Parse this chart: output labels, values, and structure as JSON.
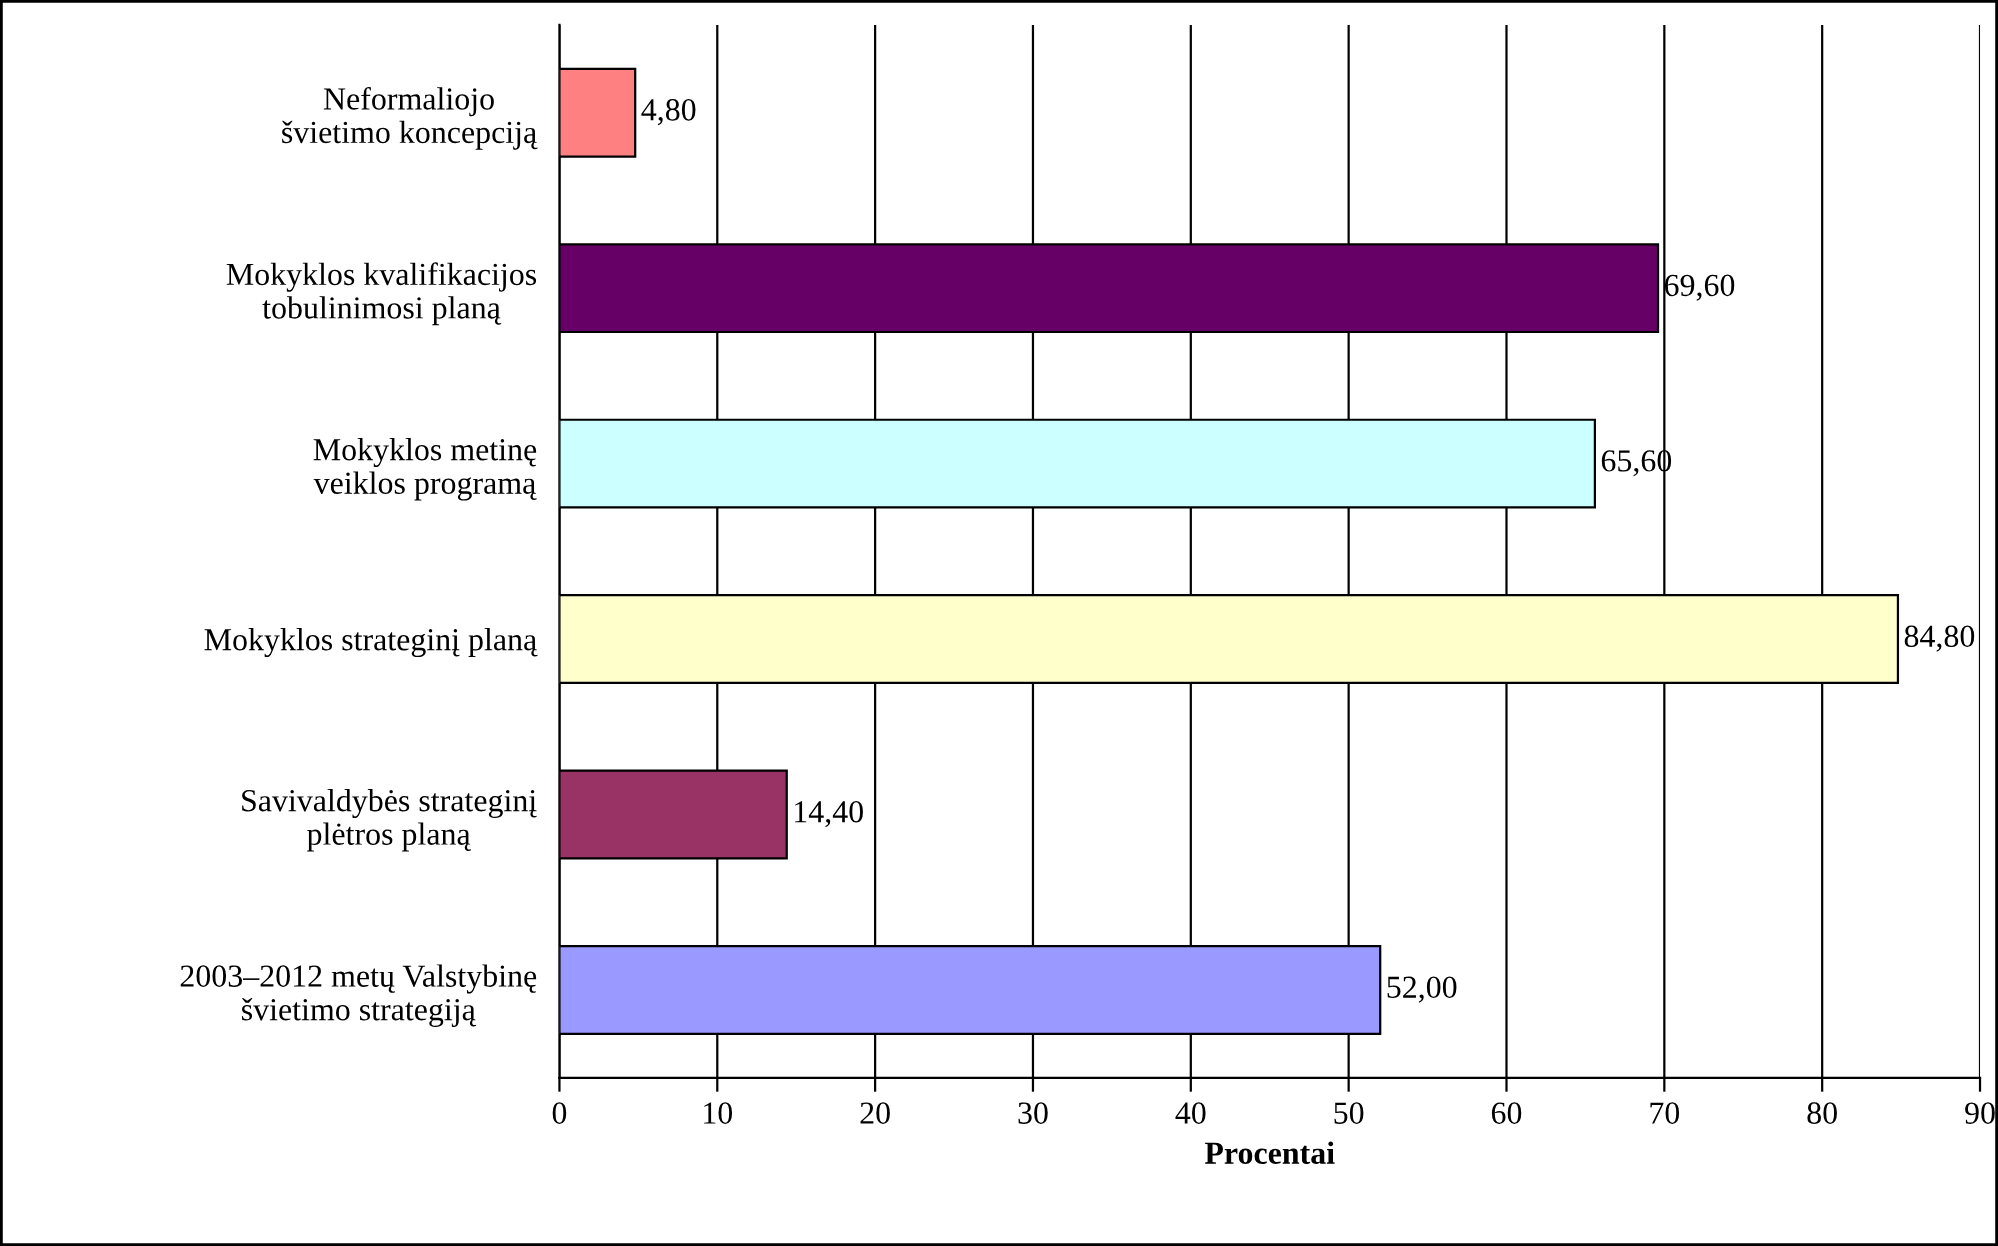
{
  "chart_data": {
    "type": "bar",
    "orientation": "horizontal",
    "xlabel": "Procentai",
    "categories": [
      "Neformaliojo švietimo koncepciją",
      "Mokyklos kvalifikacijos tobulinimosi planą",
      "Mokyklos metinę veiklos programą",
      "Mokyklos strateginį planą",
      "Savivaldybės strateginį plėtros planą",
      "2003–2012 metų Valstybinę švietimo strategiją"
    ],
    "values": [
      4.8,
      69.6,
      65.6,
      84.8,
      14.4,
      52.0
    ],
    "colors": [
      "#ff8080",
      "#660066",
      "#ccffff",
      "#ffffcc",
      "#993366",
      "#9999ff"
    ],
    "value_labels": [
      "4,80",
      "69,60",
      "65,60",
      "84,80",
      "14,40",
      "52,00"
    ],
    "xlim": [
      0,
      90
    ],
    "xticks": [
      0,
      10,
      20,
      30,
      40,
      50,
      60,
      70,
      80,
      90
    ],
    "grid": "x",
    "legend": false
  }
}
